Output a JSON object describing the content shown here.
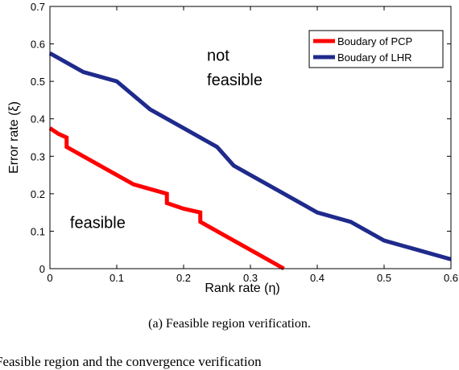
{
  "chart_data": {
    "type": "line",
    "xlabel": "Rank rate (η)",
    "ylabel": "Error rate (ξ)",
    "xlim": [
      0,
      0.6
    ],
    "ylim": [
      0,
      0.7
    ],
    "xticks": [
      "0",
      "0.1",
      "0.2",
      "0.3",
      "0.4",
      "0.5",
      "0.6"
    ],
    "yticks": [
      "0",
      "0.1",
      "0.2",
      "0.3",
      "0.4",
      "0.5",
      "0.6",
      "0.7"
    ],
    "grid": false,
    "legend_position": "top-right",
    "series": [
      {
        "name": "Boudary of PCP",
        "color": "#ff0000",
        "x": [
          0,
          0.0125,
          0.025,
          0.025,
          0.05,
          0.075,
          0.1,
          0.125,
          0.15,
          0.175,
          0.175,
          0.2,
          0.225,
          0.225,
          0.25,
          0.275,
          0.3,
          0.325,
          0.35
        ],
        "y": [
          0.375,
          0.36,
          0.35,
          0.325,
          0.3,
          0.275,
          0.25,
          0.225,
          0.2125,
          0.2,
          0.175,
          0.16,
          0.15,
          0.125,
          0.1,
          0.075,
          0.05,
          0.025,
          0
        ]
      },
      {
        "name": "Boudary of LHR",
        "color": "#1f2a8c",
        "x": [
          0,
          0.05,
          0.1,
          0.15,
          0.2,
          0.25,
          0.275,
          0.3,
          0.35,
          0.4,
          0.45,
          0.5,
          0.55,
          0.6
        ],
        "y": [
          0.575,
          0.525,
          0.5,
          0.425,
          0.375,
          0.325,
          0.275,
          0.25,
          0.2,
          0.15,
          0.125,
          0.075,
          0.05,
          0.025
        ]
      }
    ],
    "annotations": [
      {
        "text": "not",
        "x": 0.235,
        "y": 0.555
      },
      {
        "text": "feasible",
        "x": 0.235,
        "y": 0.49
      },
      {
        "text": "feasible",
        "x": 0.03,
        "y": 0.108
      }
    ]
  },
  "caption": "(a) Feasible region verification.",
  "footer_text": "Feasible region and the convergence verification"
}
